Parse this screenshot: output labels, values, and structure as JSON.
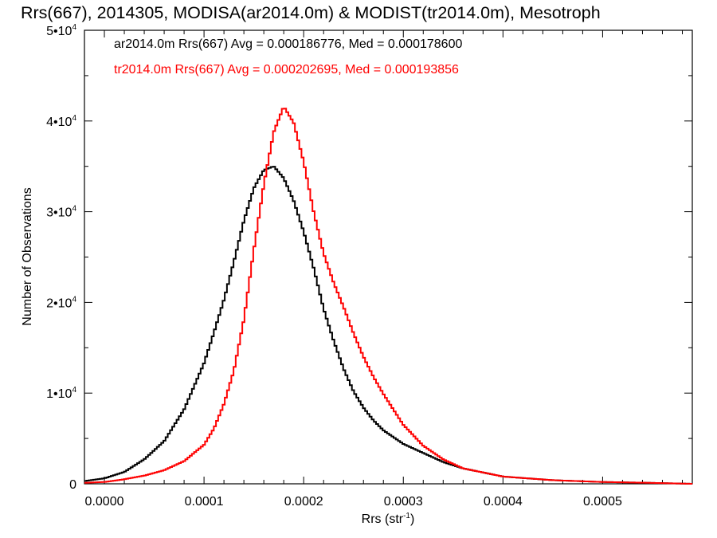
{
  "chart_data": {
    "type": "line",
    "title": "Rrs(667), 2014305, MODISA(ar2014.0m) & MODIST(tr2014.0m), Mesotroph",
    "xlabel": "Rrs (str",
    "xlabel_sup": "-1",
    "xlabel_end": ")",
    "ylabel": "Number of Observations",
    "xlim": [
      -2e-05,
      0.00059
    ],
    "ylim": [
      0,
      50000
    ],
    "x_ticks": [
      {
        "value": 0.0,
        "label": "0.0000"
      },
      {
        "value": 0.0001,
        "label": "0.0001"
      },
      {
        "value": 0.0002,
        "label": "0.0002"
      },
      {
        "value": 0.0003,
        "label": "0.0003"
      },
      {
        "value": 0.0004,
        "label": "0.0004"
      },
      {
        "value": 0.0005,
        "label": "0.0005"
      }
    ],
    "y_ticks": [
      {
        "value": 0,
        "label": "0",
        "sup": ""
      },
      {
        "value": 10000,
        "label": "1•10",
        "sup": "4"
      },
      {
        "value": 20000,
        "label": "2•10",
        "sup": "4"
      },
      {
        "value": 30000,
        "label": "3•10",
        "sup": "4"
      },
      {
        "value": 40000,
        "label": "4•10",
        "sup": "4"
      },
      {
        "value": 50000,
        "label": "5•10",
        "sup": "4"
      }
    ],
    "grid": false,
    "legend_position": "top-left",
    "step_shape": "histogram",
    "series": [
      {
        "name": "ar2014.0m Rrs(667) Avg = 0.000186776, Med = 0.000178600",
        "color": "#000000",
        "x": [
          -2e-05,
          0.0,
          2e-05,
          4e-05,
          6e-05,
          8e-05,
          0.0001,
          0.00011,
          0.00012,
          0.00013,
          0.00014,
          0.00015,
          0.00016,
          0.00017,
          0.00018,
          0.00019,
          0.0002,
          0.00021,
          0.00022,
          0.00023,
          0.00024,
          0.00025,
          0.00026,
          0.00027,
          0.00028,
          0.0003,
          0.00032,
          0.00034,
          0.00036,
          0.0004,
          0.00045,
          0.0005,
          0.00055,
          0.00059
        ],
        "y": [
          300,
          600,
          1300,
          2700,
          4700,
          8200,
          13300,
          16700,
          20300,
          24500,
          29000,
          32600,
          34600,
          35000,
          33700,
          31200,
          27800,
          23800,
          19300,
          15800,
          12700,
          10200,
          8400,
          7000,
          5900,
          4400,
          3400,
          2400,
          1700,
          800,
          400,
          200,
          100,
          0
        ]
      },
      {
        "name": "tr2014.0m Rrs(667) Avg = 0.000202695, Med = 0.000193856",
        "color": "#ff0000",
        "x": [
          -2e-05,
          0.0,
          2e-05,
          4e-05,
          6e-05,
          8e-05,
          0.0001,
          0.00011,
          0.00012,
          0.00013,
          0.00014,
          0.00015,
          0.00016,
          0.00017,
          0.00018,
          0.00019,
          0.0002,
          0.00021,
          0.00022,
          0.00023,
          0.00024,
          0.00025,
          0.00026,
          0.00027,
          0.00028,
          0.0003,
          0.00032,
          0.00034,
          0.00036,
          0.0004,
          0.00045,
          0.0005,
          0.00055,
          0.00059
        ],
        "y": [
          100,
          200,
          500,
          900,
          1500,
          2500,
          4300,
          6100,
          8800,
          12500,
          18100,
          25800,
          33000,
          38800,
          41600,
          39800,
          35500,
          30000,
          25400,
          22200,
          19500,
          16600,
          14000,
          11800,
          9900,
          6500,
          4200,
          2700,
          1700,
          800,
          400,
          200,
          100,
          0
        ]
      }
    ]
  }
}
